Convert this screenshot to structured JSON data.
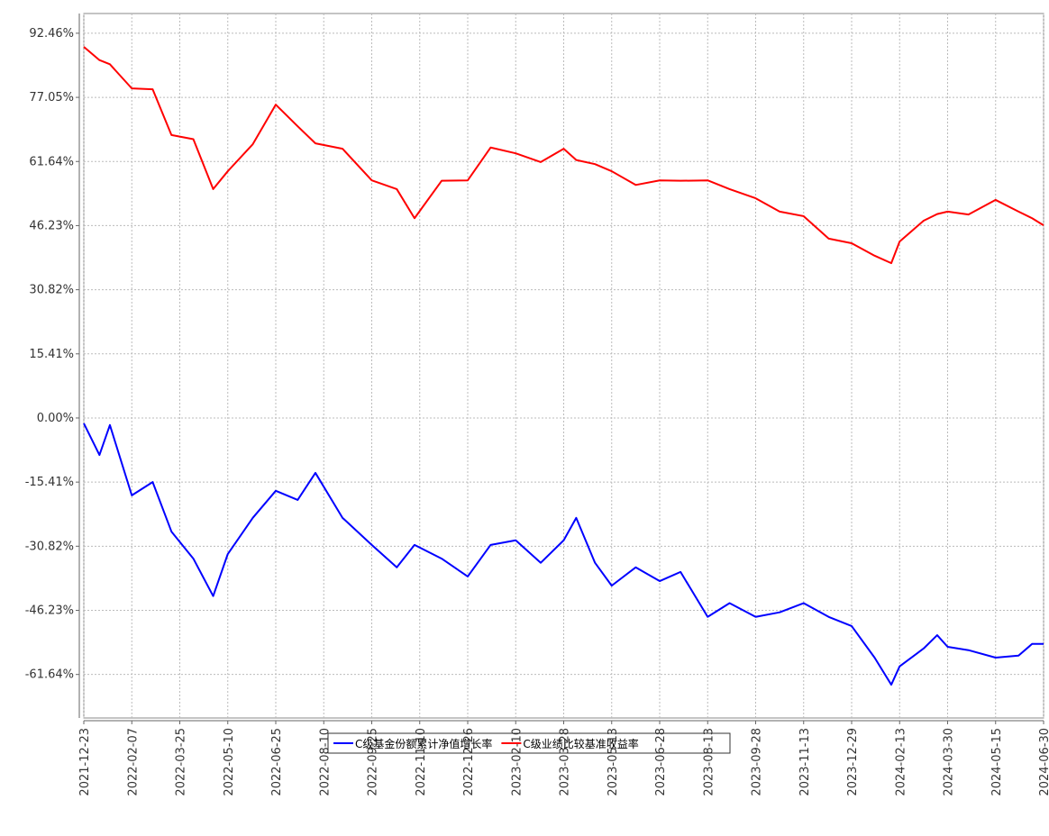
{
  "chart_data": {
    "type": "line",
    "x": [
      "2021-12-23",
      "2022-01-07",
      "2022-01-17",
      "2022-02-07",
      "2022-02-27",
      "2022-03-17",
      "2022-04-07",
      "2022-04-26",
      "2022-05-10",
      "2022-06-03",
      "2022-06-25",
      "2022-07-16",
      "2022-08-02",
      "2022-08-28",
      "2022-09-25",
      "2022-10-19",
      "2022-11-05",
      "2022-12-01",
      "2022-12-26",
      "2023-01-17",
      "2023-02-10",
      "2023-03-06",
      "2023-03-28",
      "2023-04-09",
      "2023-04-27",
      "2023-05-13",
      "2023-06-05",
      "2023-06-28",
      "2023-07-18",
      "2023-08-13",
      "2023-09-03",
      "2023-09-28",
      "2023-10-21",
      "2023-11-13",
      "2023-12-07",
      "2023-12-29",
      "2024-01-20",
      "2024-02-05",
      "2024-02-13",
      "2024-03-07",
      "2024-03-20",
      "2024-03-30",
      "2024-04-19",
      "2024-05-15",
      "2024-06-06",
      "2024-06-19",
      "2024-06-30"
    ],
    "series": [
      {
        "name": "C级基金份额累计净值增长率",
        "color": "#0000ff",
        "values": [
          -1.3,
          -8.9,
          -1.7,
          -18.6,
          -15.4,
          -27.3,
          -33.8,
          -42.8,
          -32.7,
          -24,
          -17.5,
          -19.7,
          -13.2,
          -24,
          -30.5,
          -35.9,
          -30.5,
          -33.8,
          -38.1,
          -30.5,
          -29.4,
          -34.8,
          -29.4,
          -24,
          -34.8,
          -40.3,
          -35.9,
          -39.2,
          -37,
          -47.8,
          -44.5,
          -47.8,
          -46.7,
          -44.5,
          -47.8,
          -50,
          -57.6,
          -64.1,
          -59.7,
          -55.4,
          -52.2,
          -55,
          -55.8,
          -57.6,
          -57.1,
          -54.3,
          -54.3
        ]
      },
      {
        "name": "C级业绩比较基准收益率",
        "color": "#ff0000",
        "values": [
          89.2,
          86,
          85,
          79.2,
          79,
          68,
          67,
          55,
          59.3,
          65.8,
          75.3,
          70.1,
          66,
          64.7,
          57.1,
          55,
          48,
          57,
          57.1,
          65,
          63.6,
          61.5,
          64.7,
          62,
          61,
          59.3,
          56,
          57.1,
          57,
          57.1,
          55,
          52.8,
          49.6,
          48.5,
          43.1,
          42,
          39,
          37.2,
          42.4,
          47.4,
          49,
          49.6,
          48.9,
          52.4,
          49.6,
          48,
          46.3
        ]
      }
    ],
    "xlim": [
      "2021-12-23",
      "2024-06-30"
    ],
    "xticks": [
      "2021-12-23",
      "2022-02-07",
      "2022-03-25",
      "2022-05-10",
      "2022-06-25",
      "2022-08-10",
      "2022-09-25",
      "2022-11-10",
      "2022-12-26",
      "2023-02-10",
      "2023-03-28",
      "2023-05-13",
      "2023-06-28",
      "2023-08-13",
      "2023-09-28",
      "2023-11-13",
      "2023-12-29",
      "2024-02-13",
      "2024-03-30",
      "2024-05-15",
      "2024-06-30"
    ],
    "ylim": [
      -72.1,
      97.2
    ],
    "yticks": [
      {
        "value": -61.64,
        "label": "-61.64%"
      },
      {
        "value": -46.23,
        "label": "-46.23%"
      },
      {
        "value": -30.82,
        "label": "-30.82%"
      },
      {
        "value": -15.41,
        "label": "-15.41%"
      },
      {
        "value": 0,
        "label": "0.00%"
      },
      {
        "value": 15.41,
        "label": "15.41%"
      },
      {
        "value": 30.82,
        "label": "30.82%"
      },
      {
        "value": 46.23,
        "label": "46.23%"
      },
      {
        "value": 61.64,
        "label": "61.64%"
      },
      {
        "value": 77.05,
        "label": "77.05%"
      },
      {
        "value": 92.46,
        "label": "92.46%"
      }
    ],
    "grid": true
  }
}
